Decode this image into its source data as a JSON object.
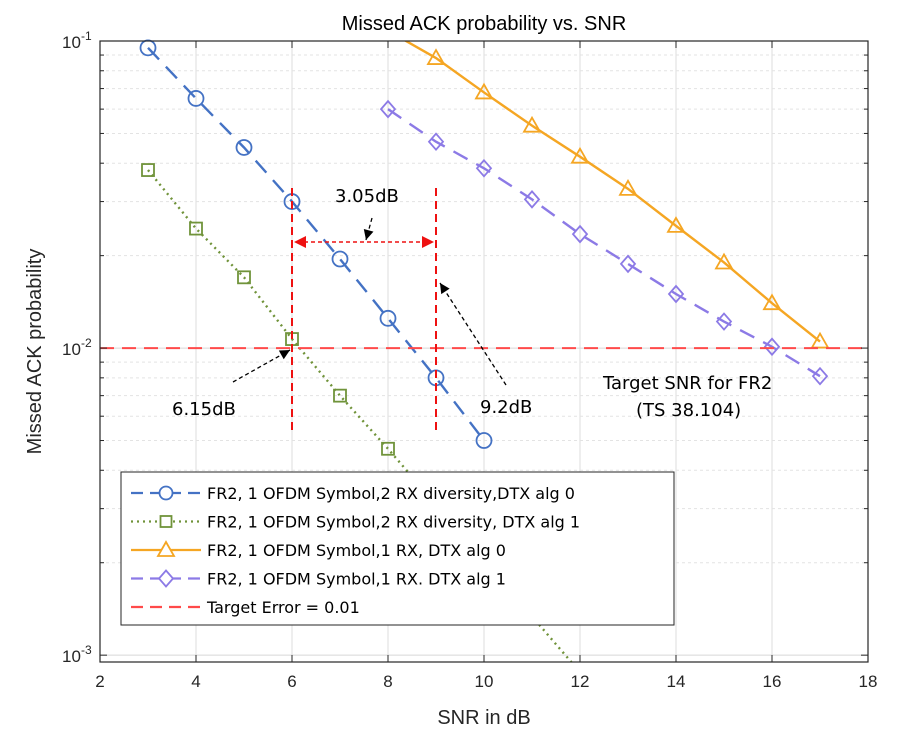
{
  "chart_data": {
    "type": "line",
    "title": "Missed ACK probability vs. SNR",
    "xlabel": "SNR in dB",
    "ylabel": "Missed ACK probability",
    "xlim": [
      2,
      18
    ],
    "ylim": [
      0.00095,
      0.1
    ],
    "yscale": "log",
    "grid": true,
    "x_ticks": [
      2,
      4,
      6,
      8,
      10,
      12,
      14,
      16,
      18
    ],
    "y_ticks": [
      {
        "value": 0.1,
        "base": "10",
        "exp": "-1"
      },
      {
        "value": 0.01,
        "base": "10",
        "exp": "-2"
      },
      {
        "value": 0.001,
        "base": "10",
        "exp": "-3"
      }
    ],
    "legend_position": "lower-left",
    "series": [
      {
        "name": "FR2, 1 OFDM Symbol,2 RX diversity,DTX alg 0",
        "color": "#4472c4",
        "dash": "dashed",
        "marker": "circle",
        "x": [
          3,
          4,
          5,
          6,
          7,
          8,
          9,
          10
        ],
        "y": [
          0.095,
          0.065,
          0.045,
          0.03,
          0.0195,
          0.0125,
          0.008,
          0.005
        ]
      },
      {
        "name": "FR2, 1 OFDM Symbol,2 RX diversity, DTX alg 1",
        "color": "#70933a",
        "dash": "dotted",
        "marker": "square",
        "x": [
          3,
          4,
          5,
          6,
          7,
          8,
          12
        ],
        "y": [
          0.038,
          0.0245,
          0.017,
          0.0107,
          0.007,
          0.0047,
          0.00088
        ]
      },
      {
        "name": "FR2, 1 OFDM Symbol,1 RX, DTX alg 0",
        "color": "#f5a623",
        "dash": "solid",
        "marker": "triangle",
        "x": [
          8,
          9,
          10,
          11,
          12,
          13,
          14,
          15,
          16,
          17
        ],
        "y": [
          0.108,
          0.088,
          0.068,
          0.053,
          0.042,
          0.033,
          0.025,
          0.019,
          0.014,
          0.0105
        ]
      },
      {
        "name": "FR2, 1 OFDM Symbol,1 RX. DTX alg 1",
        "color": "#8c7ae6",
        "dash": "dashed",
        "marker": "diamond",
        "x": [
          8,
          9,
          10,
          11,
          12,
          13,
          14,
          15,
          16,
          17
        ],
        "y": [
          0.06,
          0.047,
          0.0385,
          0.0305,
          0.0235,
          0.0188,
          0.015,
          0.0122,
          0.0101,
          0.0081
        ]
      },
      {
        "name": "Target Error = 0.01",
        "color": "#ff4a4a",
        "dash": "dashed",
        "marker": "none",
        "x": [
          2,
          18
        ],
        "y": [
          0.01,
          0.01
        ]
      }
    ],
    "annotations": {
      "gap_label": "3.05dB",
      "left_label": "6.15dB",
      "right_label": "9.2dB",
      "target_label_line1": "Target SNR for FR2",
      "target_label_line2": "(TS 38.104)",
      "marker_line_color": "#ee1111",
      "left_marker_x": 6.0,
      "right_marker_x": 9.0
    }
  }
}
